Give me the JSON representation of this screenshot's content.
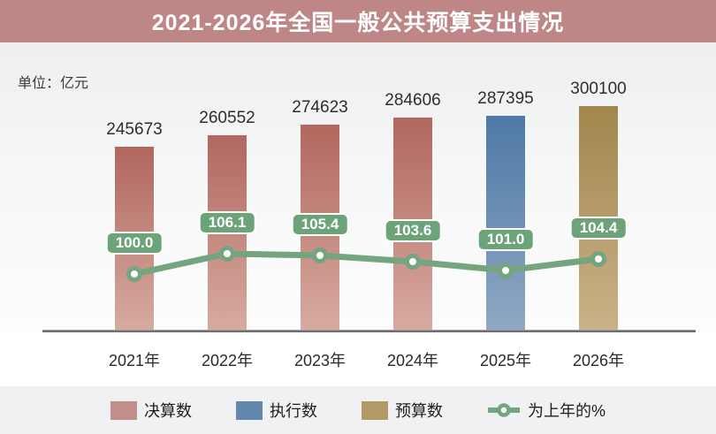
{
  "header": {
    "title": "2021-2026年全国一般公共预算支出情况"
  },
  "chart_data": {
    "type": "bar",
    "title": "2021-2026年全国一般公共预算支出情况",
    "unit_label": "单位：亿元",
    "categories": [
      "2021年",
      "2022年",
      "2023年",
      "2024年",
      "2025年",
      "2026年"
    ],
    "series": [
      {
        "name": "决算数",
        "kind": "bar",
        "values": [
          245673,
          260552,
          274623,
          284606,
          null,
          null
        ]
      },
      {
        "name": "执行数",
        "kind": "bar",
        "values": [
          null,
          null,
          null,
          null,
          287395,
          null
        ]
      },
      {
        "name": "预算数",
        "kind": "bar",
        "values": [
          null,
          null,
          null,
          null,
          null,
          300100
        ]
      },
      {
        "name": "为上年的%",
        "kind": "line",
        "values": [
          100.0,
          106.1,
          105.4,
          103.6,
          101.0,
          104.4
        ]
      }
    ],
    "ylim": [
      0,
      300100
    ],
    "grid": false,
    "legend_position": "bottom",
    "colors": {
      "title_bg": "#bf8687",
      "决算数": {
        "top": "#b1675e",
        "bottom": "#d7aaa0",
        "swatch": "#c28e8a"
      },
      "执行数": {
        "top": "#4e79a6",
        "bottom": "#8fa8c3",
        "swatch": "#6288ae"
      },
      "预算数": {
        "top": "#a1864c",
        "bottom": "#c9b288",
        "swatch": "#b29a67"
      },
      "为上年的%": {
        "line": "#74a57e",
        "badge": "#6da379",
        "marker_fill": "#ffffff"
      },
      "axis": "#6f6f71",
      "value_text": "#2e2e2e"
    }
  }
}
